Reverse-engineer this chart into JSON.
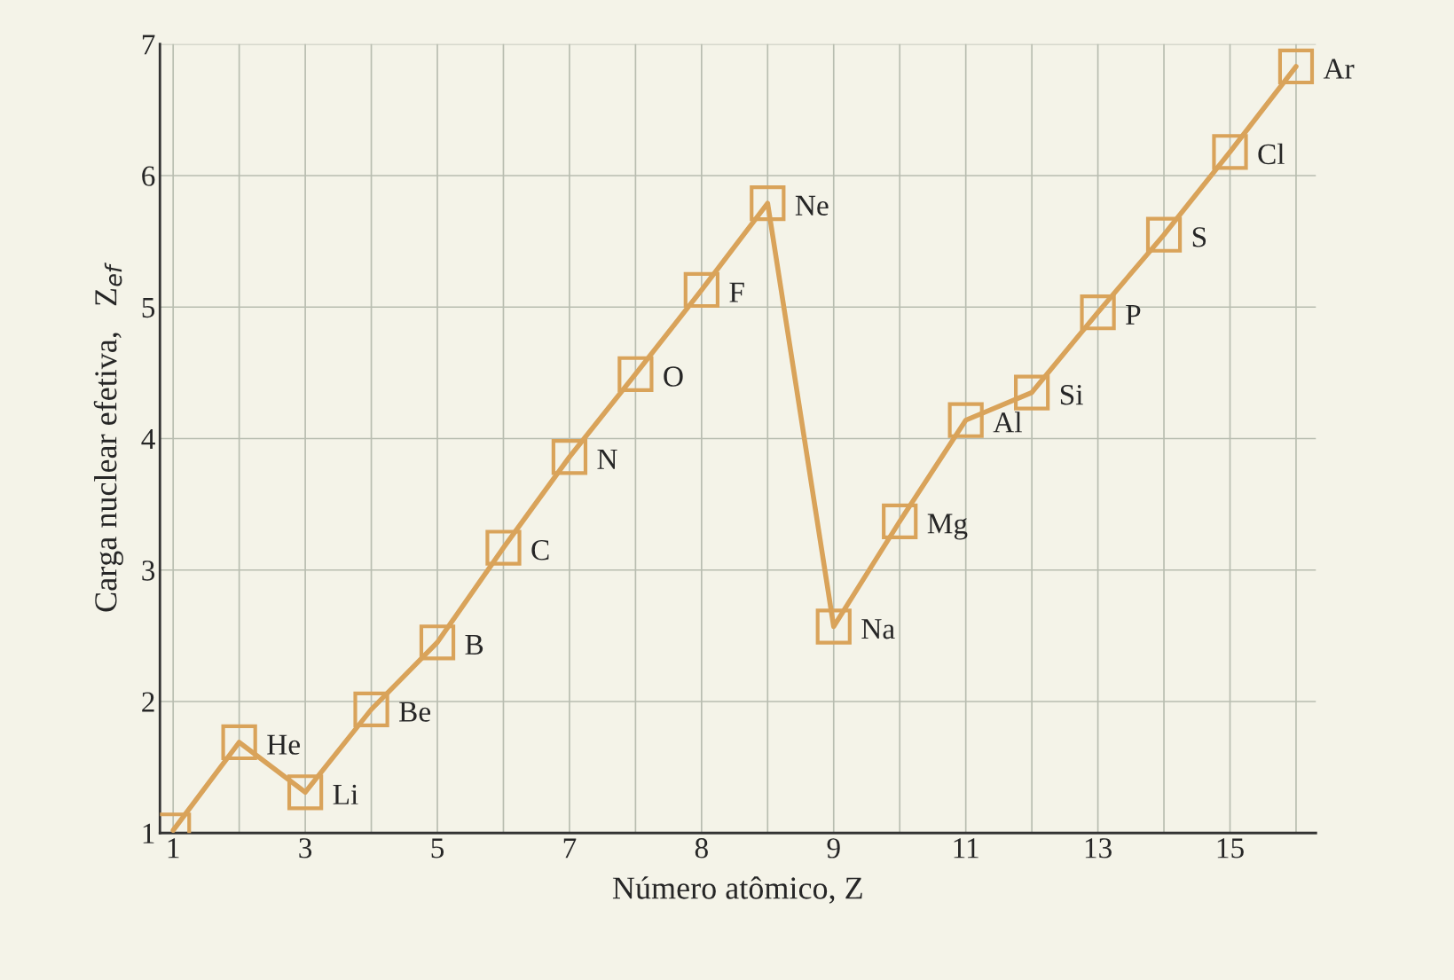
{
  "chart_data": {
    "type": "line",
    "xlabel": "Número atômico, Z",
    "ylabel": "Carga nuclear efetiva,   Z$_{ef}$",
    "categories": [
      "1",
      null,
      "3",
      null,
      "5",
      null,
      "7",
      null,
      "8",
      null,
      "9",
      null,
      "11",
      null,
      "13",
      null,
      "15",
      null
    ],
    "series": [
      {
        "color": "#d9a35a",
        "values": [
          1.02,
          1.69,
          1.31,
          1.94,
          2.45,
          3.17,
          3.86,
          4.49,
          5.13,
          5.79,
          2.57,
          3.37,
          4.14,
          4.35,
          4.96,
          5.55,
          6.18,
          6.83
        ],
        "value_labels": [
          null,
          "He",
          "Li",
          "Be",
          "B",
          "C",
          "N",
          "O",
          "F",
          "Ne",
          "Na",
          "Mg",
          "Al",
          "Si",
          "P",
          "S",
          "Cl",
          "Ar"
        ]
      }
    ],
    "ylim": [
      1,
      7
    ],
    "yticks": [
      1,
      2,
      3,
      4,
      5,
      6,
      7
    ],
    "grid": true,
    "marker": "square",
    "line_style": "solid"
  }
}
